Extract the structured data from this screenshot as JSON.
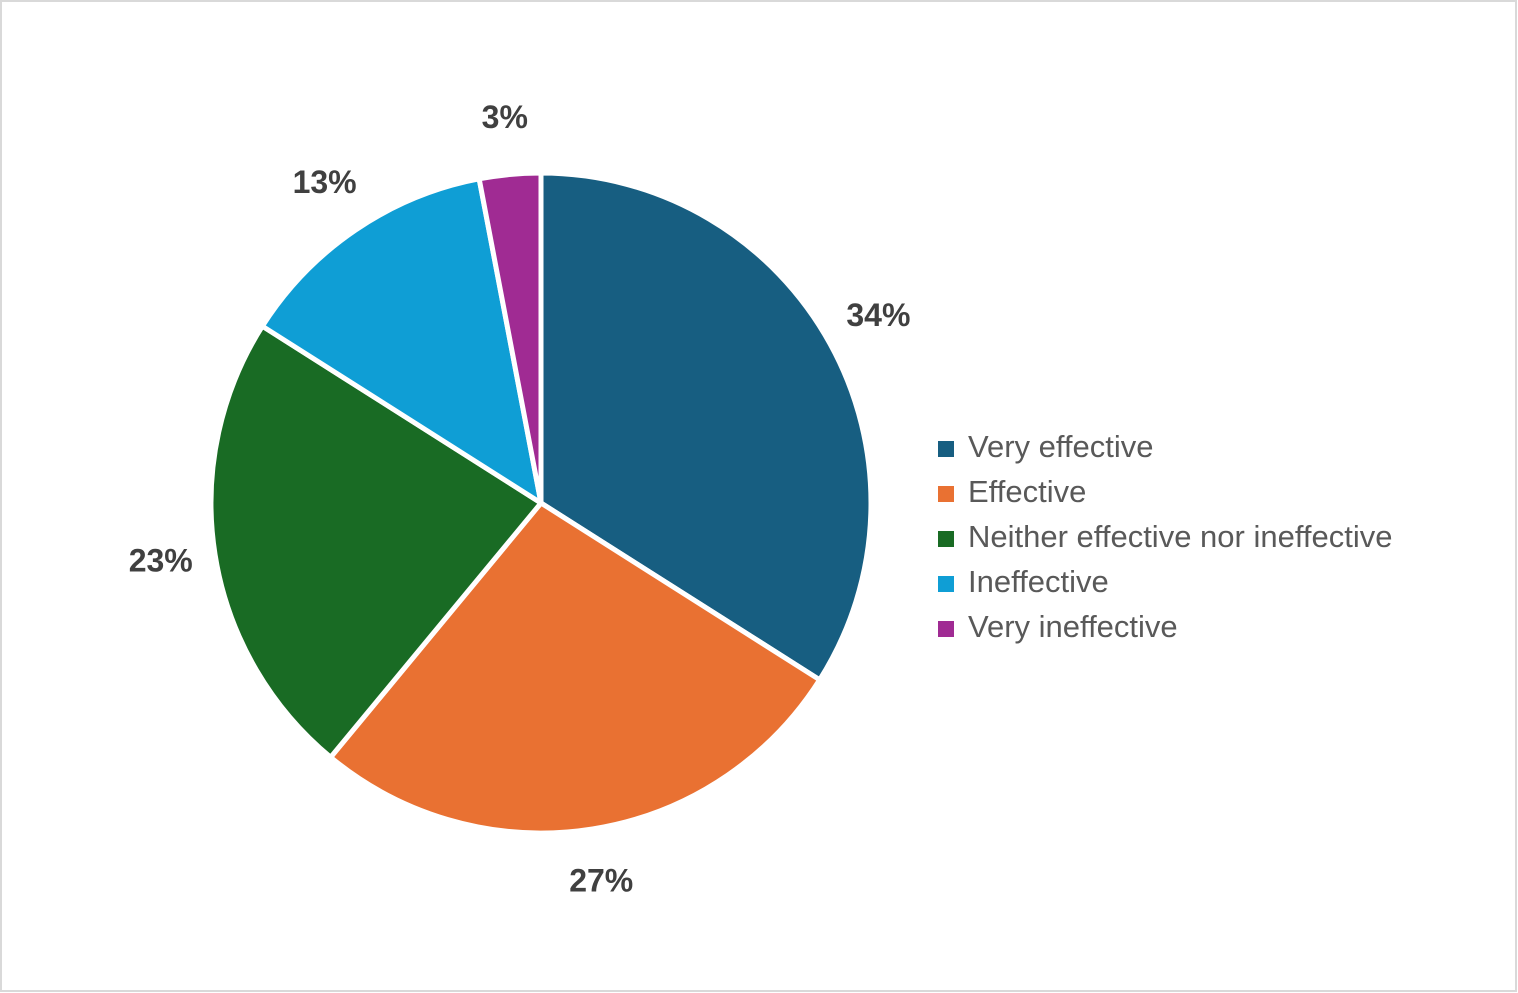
{
  "chart_data": {
    "type": "pie",
    "categories": [
      "Very effective",
      "Effective",
      "Neither effective nor ineffective",
      "Ineffective",
      "Very ineffective"
    ],
    "values": [
      34,
      27,
      23,
      13,
      3
    ],
    "value_labels": [
      "34%",
      "27%",
      "23%",
      "13%",
      "3%"
    ],
    "colors": [
      "#175e81",
      "#e97132",
      "#196b24",
      "#0f9ed5",
      "#a02b93"
    ],
    "legend": "right"
  }
}
